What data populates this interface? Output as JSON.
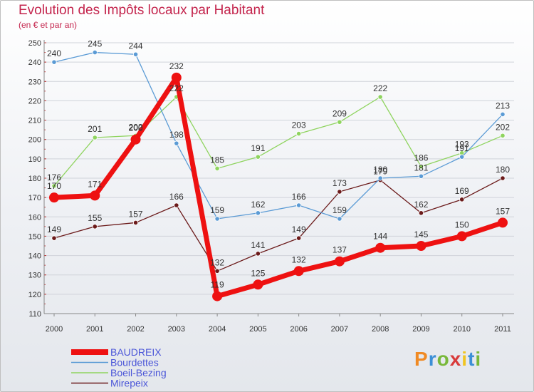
{
  "title": "Evolution des Impôts locaux par Habitant",
  "subtitle": "(en € et par an)",
  "logo": {
    "letters": [
      "P",
      "r",
      "o",
      "x",
      "i",
      "t",
      "i"
    ]
  },
  "chart_data": {
    "type": "line",
    "title": "Evolution des Impôts locaux par Habitant",
    "subtitle": "(en € et par an)",
    "xlabel": "",
    "ylabel": "",
    "ylim": [
      110,
      250
    ],
    "y_ticks": [
      110,
      120,
      130,
      140,
      150,
      160,
      170,
      180,
      190,
      200,
      210,
      220,
      230,
      240,
      250
    ],
    "categories": [
      "2000",
      "2001",
      "2002",
      "2003",
      "2004",
      "2005",
      "2006",
      "2007",
      "2008",
      "2009",
      "2010",
      "2011"
    ],
    "legend_position": "bottom-left",
    "series": [
      {
        "name": "Mirepeix",
        "color": "#6b1a1a",
        "values": [
          149,
          155,
          157,
          166,
          132,
          141,
          149,
          173,
          179,
          162,
          169,
          180
        ]
      },
      {
        "name": "Boeil-Bezing",
        "color": "#8fd45f",
        "values": [
          176,
          201,
          202,
          222,
          185,
          191,
          203,
          209,
          222,
          186,
          193,
          202
        ]
      },
      {
        "name": "Bourdettes",
        "color": "#5b9bd5",
        "values": [
          240,
          245,
          244,
          198,
          159,
          162,
          166,
          159,
          180,
          181,
          191,
          213
        ]
      },
      {
        "name": "BAUDREIX",
        "color": "#ee1111",
        "values": [
          170,
          171,
          200,
          232,
          119,
          125,
          132,
          137,
          144,
          145,
          150,
          157
        ],
        "highlight": true
      }
    ],
    "legend": [
      "BAUDREIX",
      "Bourdettes",
      "Boeil-Bezing",
      "Mirepeix"
    ]
  }
}
